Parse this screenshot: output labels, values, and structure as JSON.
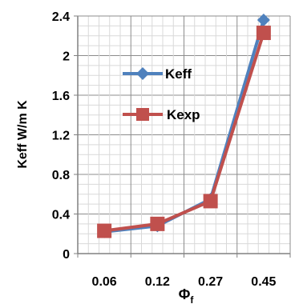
{
  "chart_data": {
    "type": "line",
    "categories": [
      "0.06",
      "0.12",
      "0.27",
      "0.45"
    ],
    "xlabel": "Φ",
    "xlabel_subscript": "f",
    "ylabel": "Keff W/m K",
    "ylim": [
      0,
      2.4
    ],
    "yticks": [
      "0",
      "0.4",
      "0.8",
      "1.2",
      "1.6",
      "2",
      "2.4"
    ],
    "grid": true,
    "legend_position": "inside-left",
    "series": [
      {
        "name": "Keff",
        "values": [
          0.22,
          0.28,
          0.55,
          2.36
        ],
        "marker": "diamond",
        "color": "#4F81BD"
      },
      {
        "name": "Kexp",
        "values": [
          0.23,
          0.3,
          0.53,
          2.23
        ],
        "marker": "square",
        "color": "#C0504D"
      }
    ]
  }
}
